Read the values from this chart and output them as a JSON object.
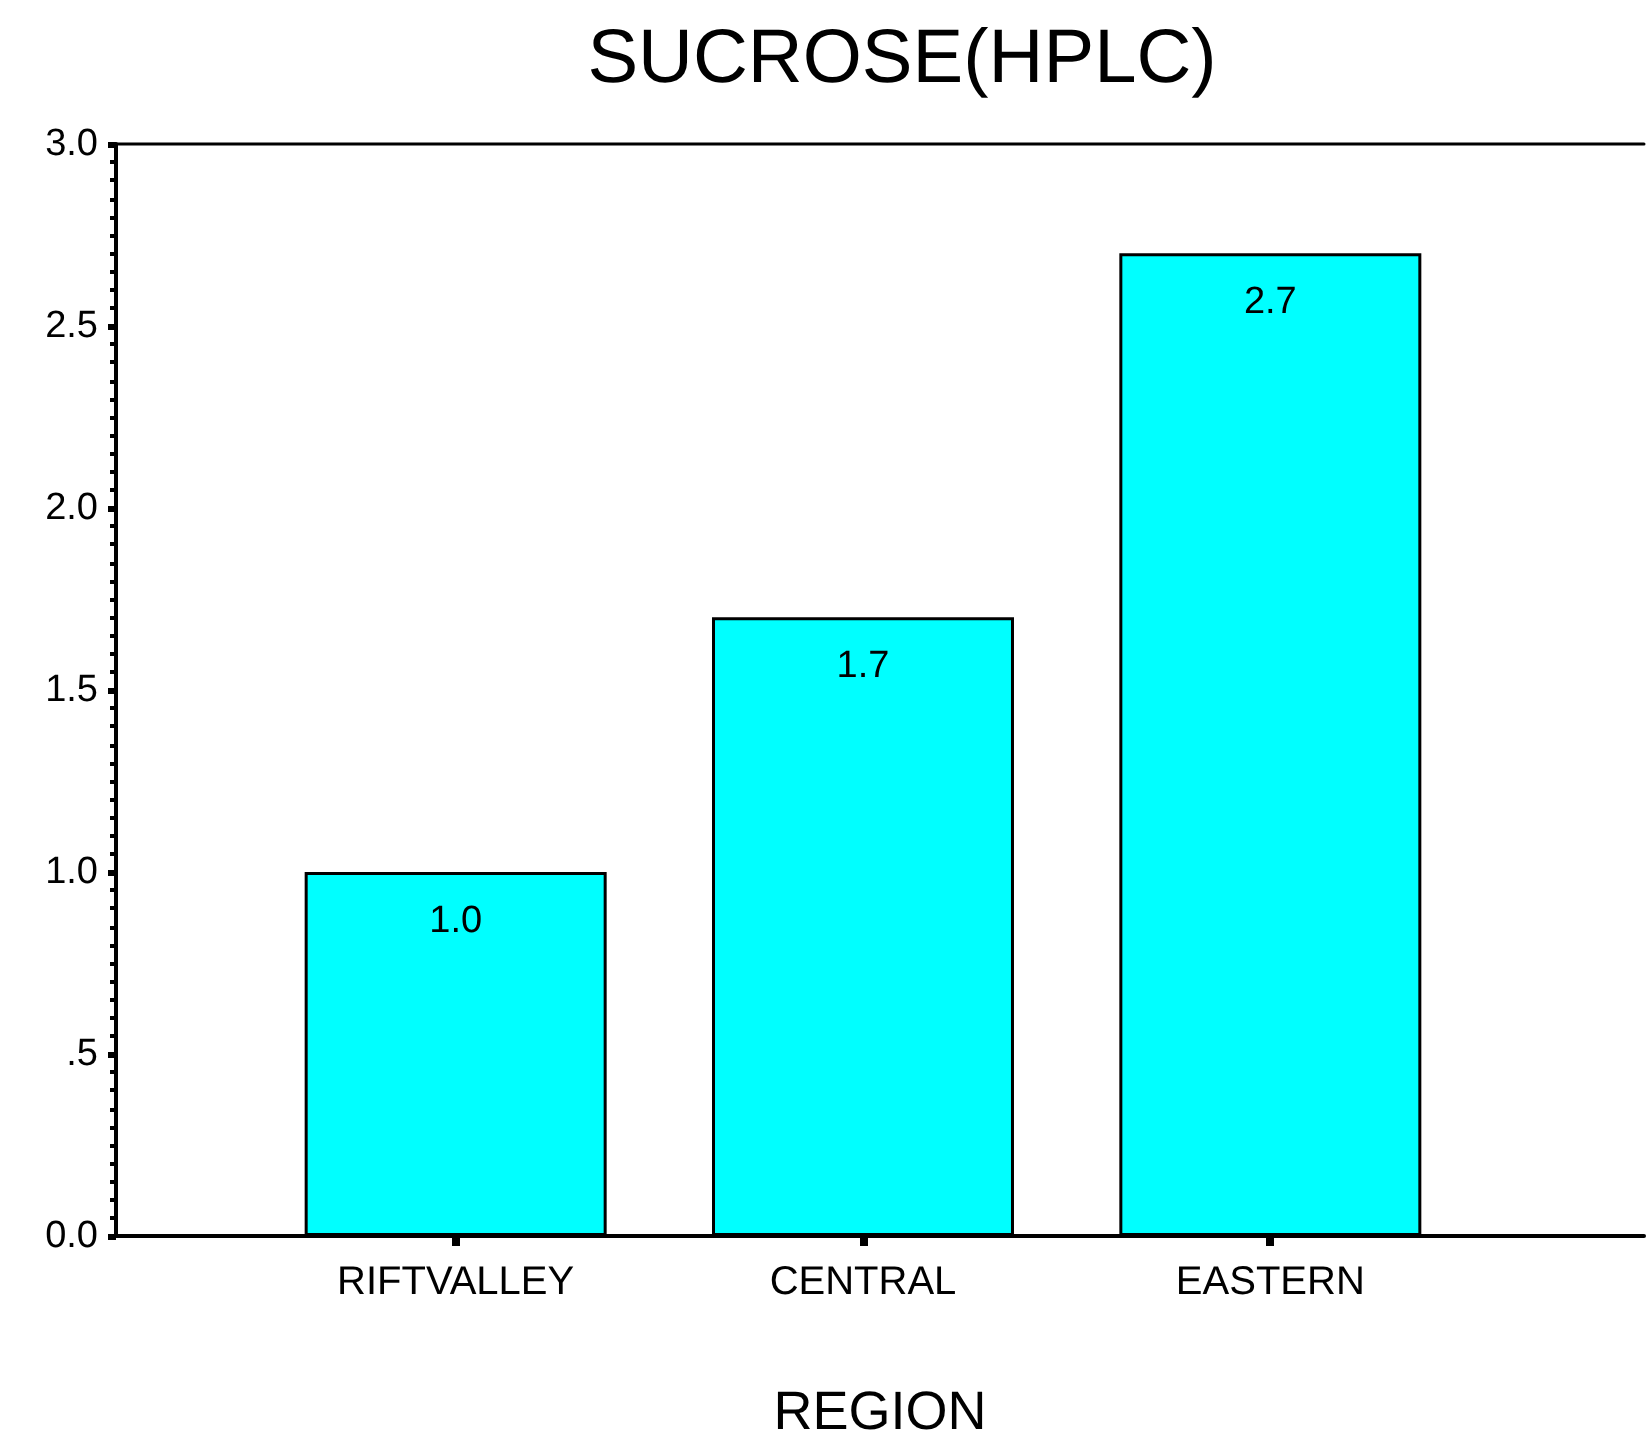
{
  "chart_data": {
    "type": "bar",
    "title": "SUCROSE(HPLC)",
    "xlabel": "REGION",
    "categories": [
      "RIFTVALLEY",
      "CENTRAL",
      "EASTERN"
    ],
    "values": [
      1.0,
      1.7,
      2.7
    ],
    "value_labels": [
      "1.0",
      "1.7",
      "2.7"
    ],
    "color": "#00ffff",
    "ylim": [
      0,
      3
    ],
    "yticks": [
      {
        "value": 0,
        "label": "0.0"
      },
      {
        "value": 0.5,
        "label": ".5"
      },
      {
        "value": 1,
        "label": "1.0"
      },
      {
        "value": 1.5,
        "label": "1.5"
      },
      {
        "value": 2,
        "label": "2.0"
      },
      {
        "value": 2.5,
        "label": "2.5"
      },
      {
        "value": 3,
        "label": "3.0"
      }
    ]
  }
}
